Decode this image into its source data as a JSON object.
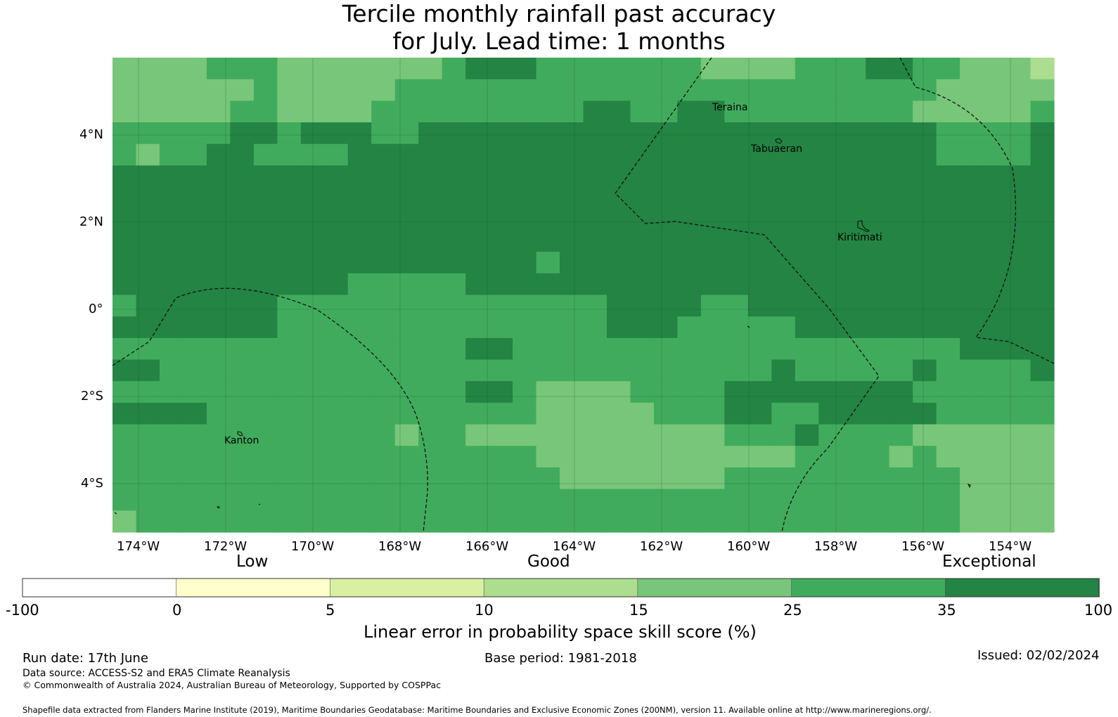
{
  "title": {
    "line1": "Tercile monthly rainfall past accuracy",
    "line2": "for July. Lead time: 1 months"
  },
  "map": {
    "lat_labels": [
      "4°N",
      "2°N",
      "0°",
      "2°S",
      "4°S"
    ],
    "lon_labels": [
      "174°W",
      "172°W",
      "170°W",
      "168°W",
      "166°W",
      "164°W",
      "162°W",
      "160°W",
      "158°W",
      "156°W",
      "154°W"
    ],
    "places": [
      "Teraina",
      "Tabuaeran",
      "Kiritimati",
      "Kanton"
    ],
    "grid_colors": [
      "#ffffff",
      "#ffffcc",
      "#d9f0a3",
      "#addd8e",
      "#78c679",
      "#41ab5d",
      "#238443"
    ],
    "grid": [
      "4444555444444456665555555444455566554443",
      "4444445444445555555555555555555555544444",
      "4444455444455555555566556655555555444445",
      "5555566566655666666666666666666666655556",
      "5455665555666666666666666666666666655556",
      "6666666666666666666666666666666666666666",
      "6666666666666666666666666666666666666666",
      "6666666666666666666666666666666666666666",
      "6666666666666666666666666666666666666666",
      "6666666666666666665666666666666666666666",
      "6666666666555556666666666666666666666666",
      "5666666555555555555556666556666666666666",
      "6666666555555555555556665555566666666666",
      "5555555555555556655555555555555555556666",
      "6655555555555555555555555555655555655556",
      "5555555555555556654444555566666666555555",
      "6666555555555555554444455566556666655555",
      "5555555555554554444444444455565555444444",
      "5555555555555555554444444444455554544444",
      "5555555555555555555444444455555555554444",
      "5555555555555555555555555555555555554444",
      "4555555555555555555555555555555555554444"
    ]
  },
  "colorbar": {
    "colors": [
      "#ffffff",
      "#ffffcc",
      "#d9f0a3",
      "#addd8e",
      "#78c679",
      "#41ab5d",
      "#238443"
    ],
    "tick_labels": [
      "-100",
      "0",
      "5",
      "10",
      "15",
      "25",
      "35",
      "100"
    ],
    "category_labels": [
      "Low",
      "Good",
      "Exceptional"
    ],
    "label": "Linear error in probability space skill score (%)"
  },
  "footer": {
    "run_date": "Run date: 17th June",
    "base_period": "Base period: 1981-2018",
    "issued": "Issued: 02/02/2024",
    "data_source": "Data source: ACCESS-S2 and ERA5 Climate Reanalysis",
    "copyright": "© Commonwealth of Australia 2024, Australian Bureau of Meteorology, Supported by COSPPac",
    "shapefile": "Shapefile data extracted from Flanders Marine Institute (2019), Maritime Boundaries Geodatabase: Maritime Boundaries and Exclusive Economic Zones (200NM), version 11. Available online at http://www.marineregions.org/."
  }
}
